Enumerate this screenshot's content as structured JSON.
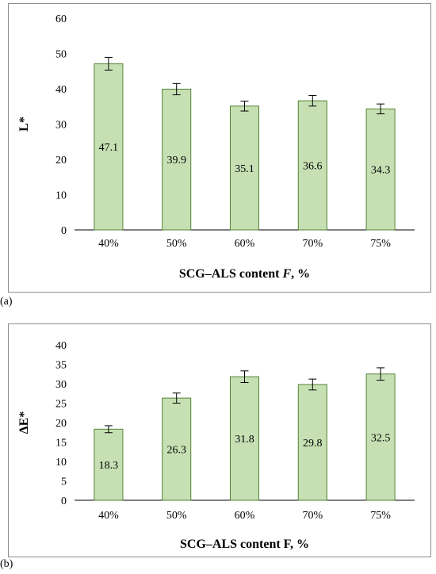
{
  "figure": {
    "panel_tags": [
      "(a)",
      "(b)"
    ]
  },
  "chart_data": [
    {
      "type": "bar",
      "id": "a",
      "categories": [
        "40%",
        "50%",
        "60%",
        "70%",
        "75%"
      ],
      "values": [
        47.1,
        39.9,
        35.1,
        36.6,
        34.3
      ],
      "errors": [
        1.8,
        1.6,
        1.4,
        1.5,
        1.4
      ],
      "data_labels": [
        "47.1",
        "39.9",
        "35.1",
        "36.6",
        "34.3"
      ],
      "ylabel": "L*",
      "xlabel": "SCG–ALS content ",
      "xlabel_italic": "F",
      "xlabel_suffix": ", %",
      "ylim": [
        0,
        60
      ],
      "yticks": [
        0,
        10,
        20,
        30,
        40,
        50,
        60
      ],
      "grid": false,
      "colors": {
        "fill": "#c6e0b4",
        "stroke": "#548235"
      }
    },
    {
      "type": "bar",
      "id": "b",
      "categories": [
        "40%",
        "50%",
        "60%",
        "70%",
        "75%"
      ],
      "values": [
        18.3,
        26.3,
        31.8,
        29.8,
        32.5
      ],
      "errors": [
        0.9,
        1.3,
        1.5,
        1.4,
        1.6
      ],
      "data_labels": [
        "18.3",
        "26.3",
        "31.8",
        "29.8",
        "32.5"
      ],
      "ylabel": "ΔE*",
      "xlabel": "SCG–ALS content F, %",
      "ylim": [
        0,
        40
      ],
      "yticks": [
        0,
        5,
        10,
        15,
        20,
        25,
        30,
        35,
        40
      ],
      "grid": false,
      "colors": {
        "fill": "#c6e0b4",
        "stroke": "#548235"
      }
    }
  ]
}
